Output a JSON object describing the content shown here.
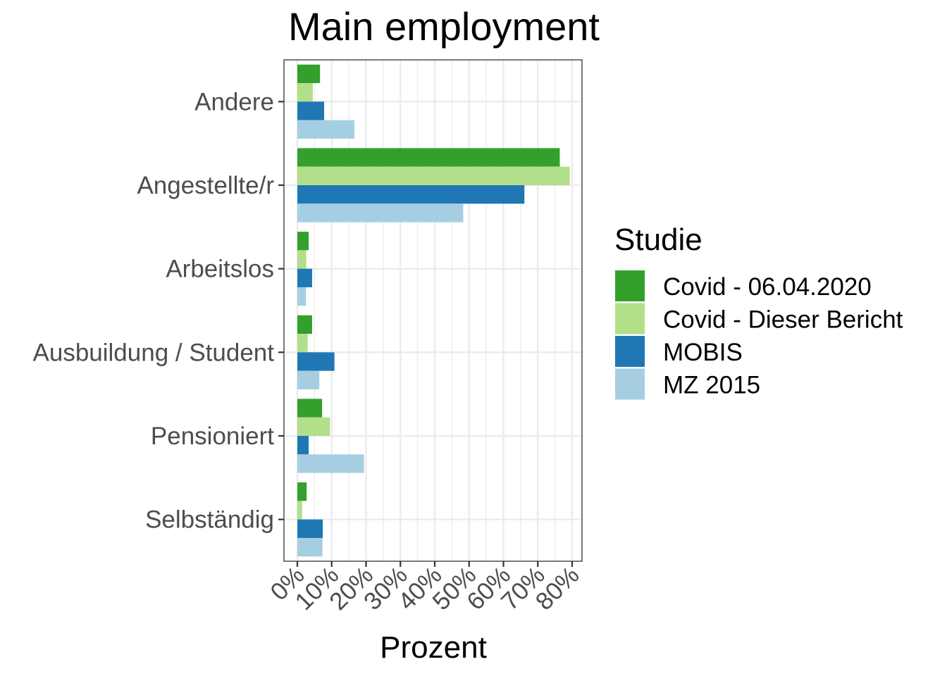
{
  "chart_data": {
    "type": "bar",
    "orientation": "horizontal",
    "title": "Main employment",
    "xlabel": "Prozent",
    "ylabel": "",
    "xlim": [
      0,
      80
    ],
    "x_ticks": [
      "0%",
      "10%",
      "20%",
      "30%",
      "40%",
      "50%",
      "60%",
      "70%",
      "80%"
    ],
    "categories": [
      "Andere",
      "Angestellte/r",
      "Arbeitslos",
      "Ausbuildung / Student",
      "Pensioniert",
      "Selbständig"
    ],
    "series": [
      {
        "name": "Covid - 06.04.2020",
        "color": "#33a02c",
        "values": [
          6.6,
          76.4,
          3.3,
          4.3,
          7.2,
          2.7
        ]
      },
      {
        "name": "Covid - Dieser Bericht",
        "color": "#b2df8a",
        "values": [
          4.5,
          79.3,
          2.6,
          3.0,
          9.5,
          1.4
        ]
      },
      {
        "name": "MOBIS",
        "color": "#1f78b4",
        "values": [
          7.8,
          66.1,
          4.3,
          10.8,
          3.3,
          7.4
        ]
      },
      {
        "name": "MZ 2015",
        "color": "#a6cee3",
        "values": [
          16.6,
          48.3,
          2.5,
          6.4,
          19.4,
          7.3
        ]
      }
    ],
    "legend": {
      "title": "Studie",
      "position": "right"
    },
    "grid": true
  }
}
